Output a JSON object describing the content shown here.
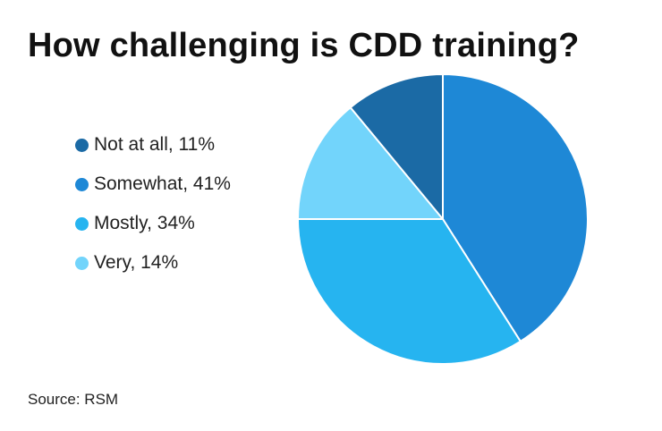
{
  "chart_data": {
    "type": "pie",
    "title": "How challenging is CDD training?",
    "legend_position": "left",
    "slices": [
      {
        "label": "Not at all, 11%",
        "value": 11,
        "color": "#1b6aa5"
      },
      {
        "label": "Somewhat, 41%",
        "value": 41,
        "color": "#1e88d6"
      },
      {
        "label": "Mostly, 34%",
        "value": 34,
        "color": "#26b4f0"
      },
      {
        "label": "Very, 14%",
        "value": 14,
        "color": "#72d4fb"
      }
    ],
    "source": "Source: RSM"
  }
}
